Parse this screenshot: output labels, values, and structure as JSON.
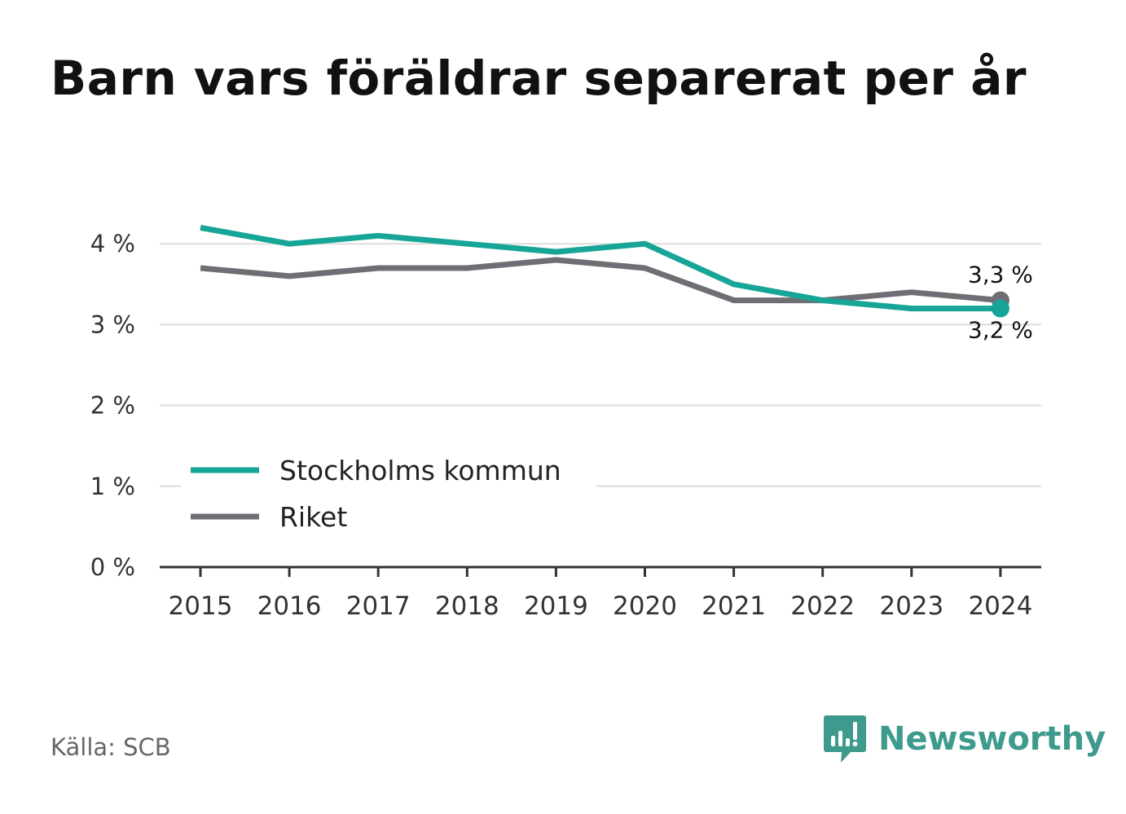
{
  "title": "Barn vars föräldrar separerat per år",
  "source": "Källa: SCB",
  "brand": "Newsworthy",
  "colors": {
    "stockholm": "#16a596",
    "riket": "#6f6e74",
    "brand": "#3f9a8e"
  },
  "chart_data": {
    "type": "line",
    "title": "Barn vars föräldrar separerat per år",
    "x": [
      "2015",
      "2016",
      "2017",
      "2018",
      "2019",
      "2020",
      "2021",
      "2022",
      "2023",
      "2024"
    ],
    "series": [
      {
        "name": "Stockholms kommun",
        "color": "#16a596",
        "values": [
          4.2,
          4.0,
          4.1,
          4.0,
          3.9,
          4.0,
          3.5,
          3.3,
          3.2,
          3.2
        ]
      },
      {
        "name": "Riket",
        "color": "#6f6e74",
        "values": [
          3.7,
          3.6,
          3.7,
          3.7,
          3.8,
          3.7,
          3.3,
          3.3,
          3.4,
          3.3
        ]
      }
    ],
    "ylim": [
      0,
      4.4
    ],
    "yticks": [
      0,
      1,
      2,
      3,
      4
    ],
    "ytick_labels": [
      "0 %",
      "1 %",
      "2 %",
      "3 %",
      "4 %"
    ],
    "end_labels": [
      "3,2 %",
      "3,3 %"
    ],
    "grid": true,
    "legend_position": "bottom-left"
  }
}
